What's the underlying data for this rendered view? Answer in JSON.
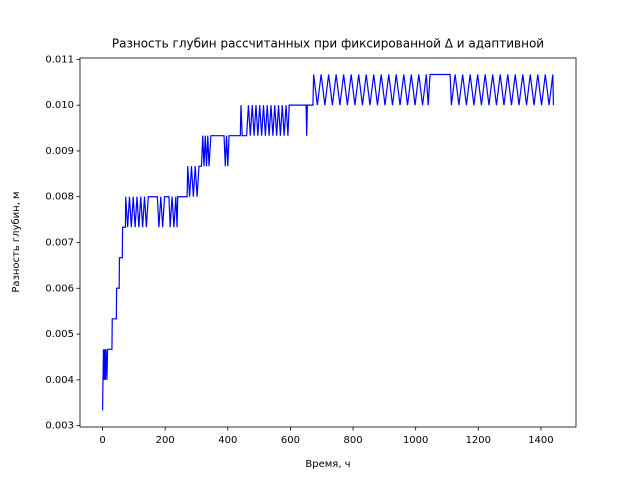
{
  "chart_data": {
    "type": "line",
    "title": "Разность глубин рассчитанных при фиксированной Δ и адаптивной",
    "x_label": "Время, ч",
    "y_label": "Разность глубин, м",
    "xlim": [
      -72,
      1512
    ],
    "ylim": [
      0.00297,
      0.01103
    ],
    "xticks": [
      0,
      200,
      400,
      600,
      800,
      1000,
      1200,
      1400
    ],
    "yticks": [
      0.003,
      0.004,
      0.005,
      0.006,
      0.007,
      0.008,
      0.009,
      {
        "value": 0.01,
        "label": "0.010"
      },
      0.011
    ],
    "grid": false,
    "x": [
      0,
      3,
      5,
      7,
      9,
      11,
      14,
      16,
      30,
      31,
      44,
      45,
      53,
      54,
      63,
      64,
      73,
      74,
      80,
      86,
      92,
      98,
      104,
      110,
      116,
      122,
      128,
      134,
      140,
      146,
      175,
      180,
      186,
      192,
      198,
      212,
      216,
      222,
      228,
      234,
      238,
      240,
      270,
      272,
      278,
      284,
      290,
      296,
      302,
      308,
      316,
      320,
      324,
      328,
      332,
      336,
      340,
      346,
      388,
      392,
      396,
      400,
      404,
      440,
      442,
      446,
      460,
      466,
      472,
      478,
      484,
      490,
      496,
      502,
      508,
      514,
      520,
      526,
      532,
      538,
      544,
      550,
      556,
      562,
      568,
      574,
      580,
      586,
      592,
      596,
      650,
      652,
      654,
      672,
      674,
      686,
      698,
      710,
      722,
      734,
      746,
      758,
      770,
      782,
      794,
      806,
      818,
      830,
      842,
      854,
      866,
      878,
      890,
      902,
      914,
      926,
      938,
      950,
      962,
      974,
      986,
      998,
      1010,
      1022,
      1034,
      1040,
      1046,
      1110,
      1114,
      1126,
      1138,
      1150,
      1162,
      1174,
      1186,
      1198,
      1210,
      1222,
      1234,
      1246,
      1258,
      1270,
      1282,
      1294,
      1306,
      1318,
      1330,
      1342,
      1354,
      1366,
      1378,
      1390,
      1402,
      1414,
      1426,
      1438,
      1440
    ],
    "series": [
      {
        "name": "Разность глубин",
        "color": "#0000ff",
        "values": [
          0.003333,
          0.004667,
          0.004,
          0.004667,
          0.004,
          0.004667,
          0.004,
          0.004667,
          0.004667,
          0.005333,
          0.005333,
          0.006,
          0.006,
          0.006667,
          0.006667,
          0.007333,
          0.007333,
          0.008,
          0.007333,
          0.008,
          0.007333,
          0.008,
          0.007333,
          0.008,
          0.007333,
          0.008,
          0.007333,
          0.008,
          0.007333,
          0.008,
          0.008,
          0.007333,
          0.008,
          0.007333,
          0.008,
          0.008,
          0.007333,
          0.008,
          0.007333,
          0.008,
          0.007333,
          0.008,
          0.008,
          0.008667,
          0.008,
          0.008667,
          0.008,
          0.008667,
          0.008,
          0.008667,
          0.008667,
          0.009333,
          0.008667,
          0.009333,
          0.008667,
          0.009333,
          0.008667,
          0.009333,
          0.009333,
          0.008667,
          0.009333,
          0.008667,
          0.009333,
          0.009333,
          0.01,
          0.009333,
          0.009333,
          0.01,
          0.009333,
          0.01,
          0.009333,
          0.01,
          0.009333,
          0.01,
          0.009333,
          0.01,
          0.009333,
          0.01,
          0.009333,
          0.01,
          0.009333,
          0.01,
          0.009333,
          0.01,
          0.009333,
          0.01,
          0.009333,
          0.01,
          0.009333,
          0.01,
          0.01,
          0.009333,
          0.01,
          0.01,
          0.01067,
          0.01,
          0.01067,
          0.01,
          0.01067,
          0.01,
          0.01067,
          0.01,
          0.01067,
          0.01,
          0.01067,
          0.01,
          0.01067,
          0.01,
          0.01067,
          0.01,
          0.01067,
          0.01,
          0.01067,
          0.01,
          0.01067,
          0.01,
          0.01067,
          0.01,
          0.01067,
          0.01,
          0.01067,
          0.01,
          0.01067,
          0.01,
          0.01067,
          0.01,
          0.01067,
          0.01067,
          0.01,
          0.01067,
          0.01,
          0.01067,
          0.01,
          0.01067,
          0.01,
          0.01067,
          0.01,
          0.01067,
          0.01,
          0.01067,
          0.01,
          0.01067,
          0.01,
          0.01067,
          0.01,
          0.01067,
          0.01,
          0.01067,
          0.01,
          0.01067,
          0.01,
          0.01067,
          0.01,
          0.01067,
          0.01,
          0.01067,
          0.01
        ]
      }
    ]
  }
}
